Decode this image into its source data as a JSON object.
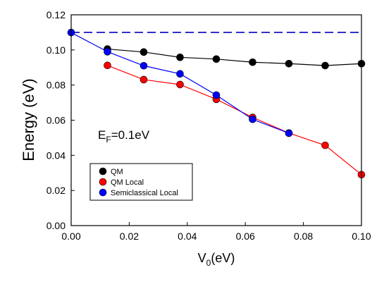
{
  "chart_data": {
    "type": "line",
    "xlabel_main": "V",
    "xlabel_sub": "0",
    "xlabel_unit": "(eV)",
    "ylabel": "Energy (eV)",
    "xlim": [
      0,
      0.1
    ],
    "ylim": [
      0,
      0.12
    ],
    "xticks": [
      "0.00",
      "0.02",
      "0.04",
      "0.06",
      "0.08",
      "0.10"
    ],
    "yticks": [
      "0.00",
      "0.02",
      "0.04",
      "0.06",
      "0.08",
      "0.10",
      "0.12"
    ],
    "grid": false,
    "legend_position": "bottom-left",
    "annotation": {
      "main": "E",
      "sub": "F",
      "rest": "=0.1eV"
    },
    "reference_line": {
      "y": 0.11,
      "style": "dashed",
      "color": "#2323c8"
    },
    "series": [
      {
        "name": "QM",
        "color": "#000000",
        "x": [
          0.0125,
          0.025,
          0.0375,
          0.05,
          0.0625,
          0.075,
          0.0875,
          0.1
        ],
        "y": [
          0.1005,
          0.0988,
          0.0958,
          0.0948,
          0.093,
          0.0922,
          0.0911,
          0.0922
        ]
      },
      {
        "name": "QM Local",
        "color": "#ff0000",
        "x": [
          0.0125,
          0.025,
          0.0375,
          0.05,
          0.0625,
          0.075,
          0.0875,
          0.1
        ],
        "y": [
          0.0912,
          0.0831,
          0.0803,
          0.0719,
          0.0616,
          0.0527,
          0.0457,
          0.029
        ]
      },
      {
        "name": "Semiclassical Local",
        "color": "#0000ff",
        "x": [
          0.0,
          0.0125,
          0.025,
          0.0375,
          0.05,
          0.0625,
          0.075
        ],
        "y": [
          0.1099,
          0.099,
          0.091,
          0.0864,
          0.0743,
          0.0605,
          0.0526
        ]
      }
    ]
  }
}
